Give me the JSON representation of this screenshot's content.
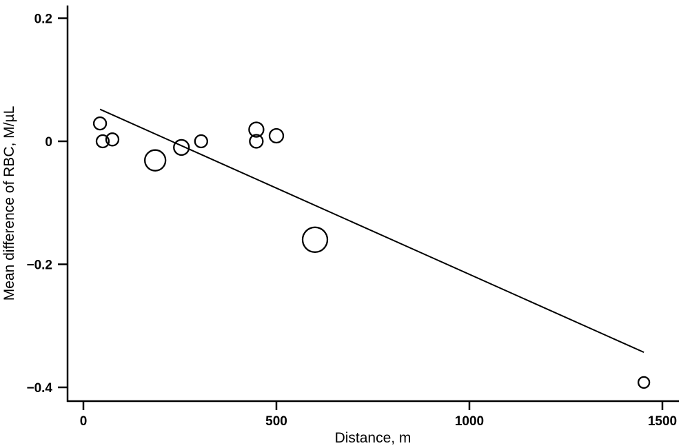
{
  "chart_data": {
    "type": "scatter",
    "title": "",
    "xlabel": "Distance, m",
    "ylabel": "Mean difference of RBC, M/µL",
    "xlim": [
      -40,
      1540
    ],
    "ylim": [
      -0.42,
      0.22
    ],
    "grid": false,
    "legend": null,
    "x_ticks": [
      0,
      500,
      1000,
      1500
    ],
    "x_tick_labels": [
      "0",
      "500",
      "1000",
      "1500"
    ],
    "y_ticks": [
      0.2,
      0,
      -0.2,
      -0.4
    ],
    "y_tick_labels": [
      "0.2",
      "0",
      "−0.2",
      "−0.4"
    ],
    "series": [
      {
        "name": "observations",
        "marker": "hollow-circle",
        "points": [
          {
            "x": 43,
            "y": 0.029,
            "size": 9
          },
          {
            "x": 50,
            "y": 0.0,
            "size": 9
          },
          {
            "x": 75,
            "y": 0.003,
            "size": 9
          },
          {
            "x": 186,
            "y": -0.031,
            "size": 15
          },
          {
            "x": 254,
            "y": -0.01,
            "size": 11
          },
          {
            "x": 305,
            "y": 0.0,
            "size": 9
          },
          {
            "x": 448,
            "y": 0.019,
            "size": 10.5
          },
          {
            "x": 448,
            "y": 0.0,
            "size": 9.5
          },
          {
            "x": 500,
            "y": 0.009,
            "size": 10
          },
          {
            "x": 600,
            "y": -0.16,
            "size": 18
          },
          {
            "x": 1452,
            "y": -0.392,
            "size": 8
          }
        ]
      },
      {
        "name": "fitted line",
        "type": "line",
        "points": [
          {
            "x": 43,
            "y": 0.052
          },
          {
            "x": 1452,
            "y": -0.343
          }
        ]
      }
    ]
  },
  "style": {
    "stroke": "#000000",
    "background": "#ffffff"
  }
}
